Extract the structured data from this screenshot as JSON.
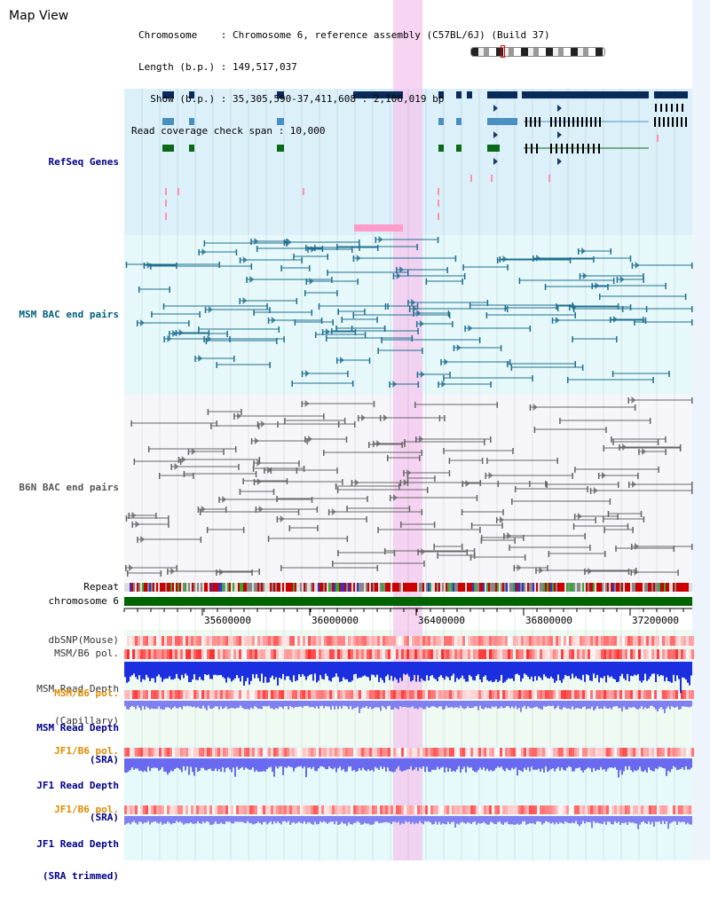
{
  "page_title": "Map View",
  "header": {
    "line1": "Chromosome    : Chromosome 6, reference assembly (C57BL/6J) (Build 37)",
    "line2": "Length (b.p.) : 149,517,037",
    "line3": "  Show (b.p.) : 35,305,590-37,411,608 : 2,106,019 bp",
    "line4": "Read coverage check span : 10,000"
  },
  "tracks": {
    "refseq": "RefSeq Genes",
    "msm_bac": "MSM BAC end pairs",
    "b6n_bac": "B6N BAC end pairs",
    "repeat": "Repeat",
    "chromosome": "chromosome 6",
    "dbsnp": "dbSNP(Mouse)",
    "msm_b6_pol_1": "MSM/B6 pol.",
    "msm_read_depth_cap_1": "MSM Read Depth",
    "msm_read_depth_cap_2": "(Capillary)",
    "msm_b6_pol_2": "MSM/B6 pol.",
    "msm_read_depth_sra_1": "MSM Read Depth",
    "msm_read_depth_sra_2": "(SRA)",
    "jf1_b6_pol_1": "JF1/B6 pol.",
    "jf1_read_depth_sra_1": "JF1 Read Depth",
    "jf1_read_depth_sra_2": "(SRA)",
    "jf1_b6_pol_2": "JF1/B6 pol.",
    "jf1_read_depth_trim_1": "JF1 Read Depth",
    "jf1_read_depth_trim_2": "(SRA trimmed)"
  },
  "axis": {
    "ticks": [
      "35600000",
      "36000000",
      "36400000",
      "36800000",
      "37200000"
    ]
  },
  "colors": {
    "label_blue": "#00008b",
    "label_teal": "#005f7f",
    "label_gray": "#555555",
    "label_orange": "#e08a00",
    "gene_navy": "#0a2a5a",
    "gene_steel": "#4a8fbf",
    "gene_green": "#0a6a1a",
    "highlight": "#f4c6ee",
    "chrom_green": "#006400"
  }
}
